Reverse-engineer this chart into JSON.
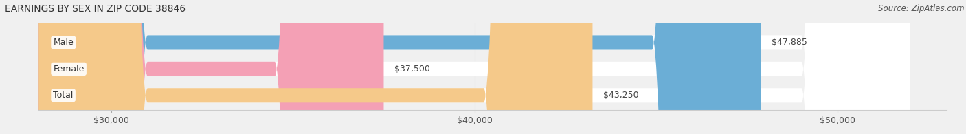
{
  "title": "EARNINGS BY SEX IN ZIP CODE 38846",
  "source": "Source: ZipAtlas.com",
  "categories": [
    "Male",
    "Female",
    "Total"
  ],
  "values": [
    47885,
    37500,
    43250
  ],
  "bar_colors": [
    "#6baed6",
    "#f4a0b5",
    "#f5c98a"
  ],
  "value_labels": [
    "$47,885",
    "$37,500",
    "$43,250"
  ],
  "xmin": 28000,
  "xmax": 52000,
  "xticks": [
    30000,
    40000,
    50000
  ],
  "xtick_labels": [
    "$30,000",
    "$40,000",
    "$50,000"
  ],
  "bar_height": 0.55,
  "background_color": "#f0f0f0",
  "title_fontsize": 10,
  "source_fontsize": 8.5,
  "tick_fontsize": 9,
  "label_fontsize": 9,
  "value_fontsize": 9
}
